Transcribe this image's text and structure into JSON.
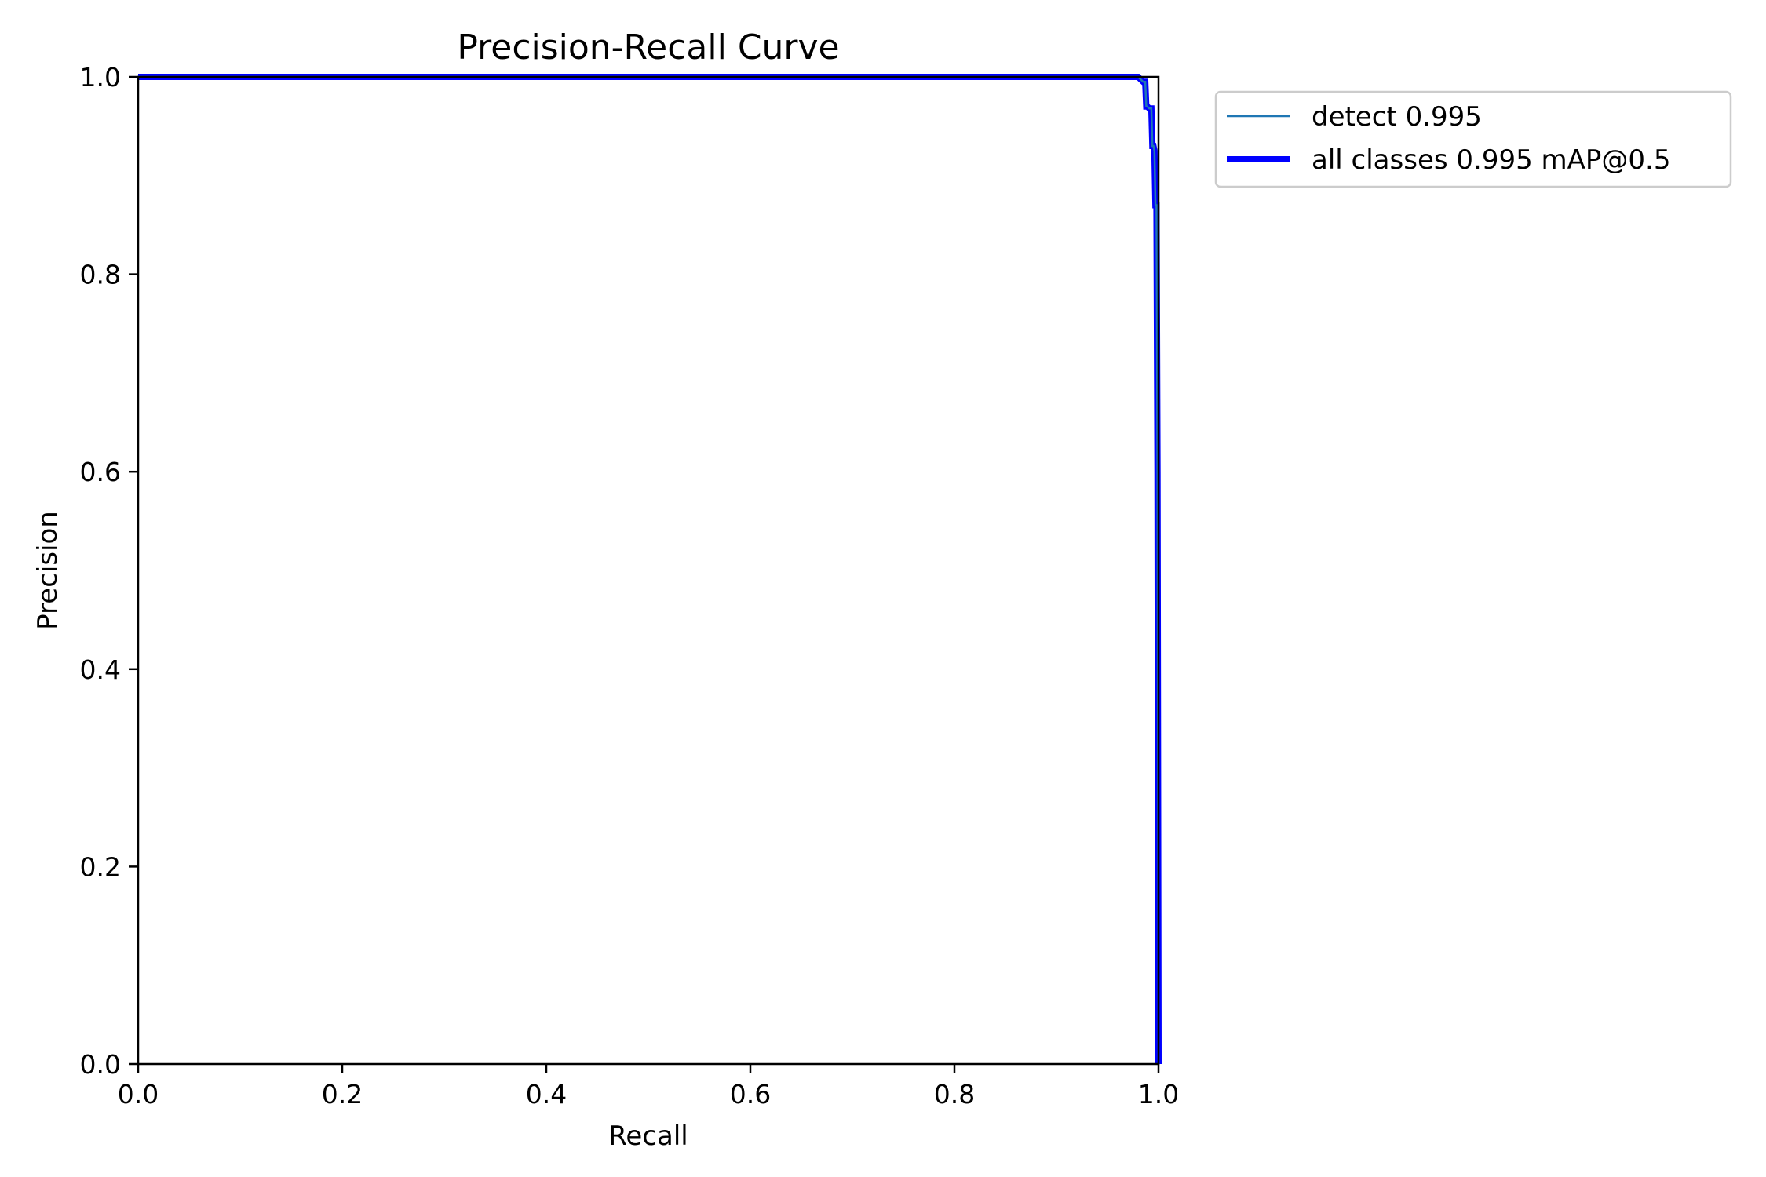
{
  "chart_data": {
    "type": "line",
    "title": "Precision-Recall Curve",
    "xlabel": "Recall",
    "ylabel": "Precision",
    "xlim": [
      0.0,
      1.0
    ],
    "ylim": [
      0.0,
      1.0
    ],
    "xticks": [
      "0.0",
      "0.2",
      "0.4",
      "0.6",
      "0.8",
      "1.0"
    ],
    "yticks": [
      "0.0",
      "0.2",
      "0.4",
      "0.6",
      "0.8",
      "1.0"
    ],
    "grid": false,
    "legend_position": "outside upper right",
    "series": [
      {
        "name": "detect 0.995",
        "color": "#1f77b4",
        "line_width": "thin",
        "x": [
          0.0,
          0.98,
          0.985,
          0.987,
          0.988,
          0.989,
          0.991,
          0.993,
          0.994,
          0.995,
          0.996,
          0.997,
          0.998,
          0.999,
          1.0
        ],
        "y": [
          1.0,
          1.0,
          0.995,
          0.995,
          0.97,
          0.97,
          0.968,
          0.968,
          0.93,
          0.93,
          0.925,
          0.87,
          0.87,
          0.6,
          0.0
        ]
      },
      {
        "name": "all classes 0.995 mAP@0.5",
        "color": "#0000ff",
        "line_width": "thick",
        "x": [
          0.0,
          0.98,
          0.985,
          0.987,
          0.988,
          0.989,
          0.991,
          0.993,
          0.994,
          0.995,
          0.996,
          0.997,
          0.998,
          0.999,
          1.0
        ],
        "y": [
          1.0,
          1.0,
          0.995,
          0.995,
          0.97,
          0.97,
          0.968,
          0.968,
          0.93,
          0.93,
          0.925,
          0.87,
          0.87,
          0.6,
          0.0
        ]
      }
    ]
  }
}
